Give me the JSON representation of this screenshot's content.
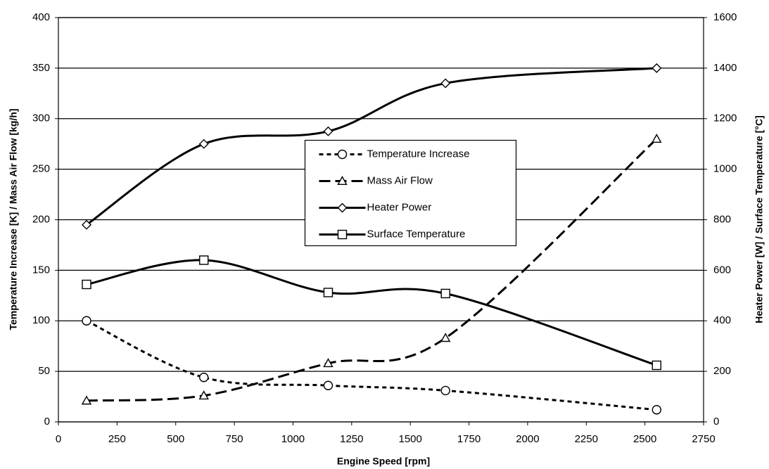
{
  "chart_data": {
    "type": "line",
    "x_label": "Engine Speed [rpm]",
    "y_label": "Temperature Increase [K] / Mass Air Flow [kg/h]",
    "y2_label": "Heater Power [W] / Surface Temperature [°C]",
    "x": [
      120,
      620,
      1150,
      1650,
      2550
    ],
    "xlim": [
      0,
      2750
    ],
    "xticks": [
      0,
      250,
      500,
      750,
      1000,
      1250,
      1500,
      1750,
      2000,
      2250,
      2500,
      2750
    ],
    "ylim": [
      0,
      400
    ],
    "yticks": [
      0,
      50,
      100,
      150,
      200,
      250,
      300,
      350,
      400
    ],
    "y2lim": [
      0,
      1600
    ],
    "y2ticks": [
      0,
      200,
      400,
      600,
      800,
      1000,
      1200,
      1400,
      1600
    ],
    "grid": true,
    "legend": "center",
    "smooth": true,
    "series": [
      {
        "name": "Temperature Increase",
        "color": "#000000",
        "marker": "circle",
        "dash": "short",
        "axis": "y",
        "values": [
          100,
          44,
          36,
          31,
          12
        ]
      },
      {
        "name": "Mass Air Flow",
        "color": "#000000",
        "marker": "triangle",
        "dash": "long",
        "axis": "y",
        "values": [
          21,
          26,
          58,
          83,
          280
        ]
      },
      {
        "name": "Heater Power",
        "color": "#000000",
        "marker": "diamond",
        "dash": "solid",
        "axis": "y2",
        "values": [
          780,
          1100,
          1150,
          1340,
          1400
        ]
      },
      {
        "name": "Surface Temperature",
        "color": "#000000",
        "marker": "square",
        "dash": "solid",
        "axis": "y2",
        "values": [
          544,
          640,
          512,
          508,
          224
        ]
      }
    ]
  }
}
